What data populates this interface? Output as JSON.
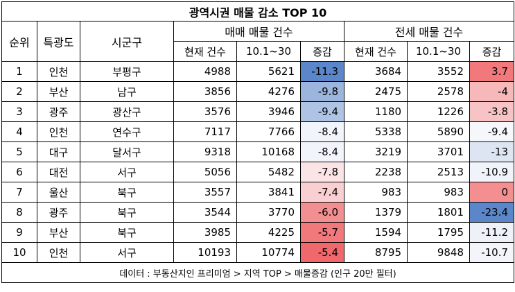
{
  "title": "광역시권 매물 감소 TOP 10",
  "headers": {
    "rank": "순위",
    "metro": "특광도",
    "district": "시군구",
    "sale_group": "매매 매물 건수",
    "jeonse_group": "전세 매물 건수",
    "current": "현재 건수",
    "period": "10.1~30",
    "change": "증감"
  },
  "rows": [
    {
      "rank": "1",
      "metro": "인천",
      "district": "부평구",
      "sale_cur": "4988",
      "sale_prev": "5621",
      "sale_chg": "-11.3",
      "sale_chg_color": "#5b86c9",
      "jeon_cur": "3684",
      "jeon_prev": "3552",
      "jeon_chg": "3.7",
      "jeon_chg_color": "#f2797b"
    },
    {
      "rank": "2",
      "metro": "부산",
      "district": "남구",
      "sale_cur": "3856",
      "sale_prev": "4276",
      "sale_chg": "-9.8",
      "sale_chg_color": "#9cb5dc",
      "jeon_cur": "2475",
      "jeon_prev": "2578",
      "jeon_chg": "-4",
      "jeon_chg_color": "#f7b8ba"
    },
    {
      "rank": "3",
      "metro": "광주",
      "district": "광산구",
      "sale_cur": "3576",
      "sale_prev": "3946",
      "sale_chg": "-9.4",
      "sale_chg_color": "#afc4e4",
      "jeon_cur": "1180",
      "jeon_prev": "1226",
      "jeon_chg": "-3.8",
      "jeon_chg_color": "#f7c3c5"
    },
    {
      "rank": "4",
      "metro": "인천",
      "district": "연수구",
      "sale_cur": "7117",
      "sale_prev": "7766",
      "sale_chg": "-8.4",
      "sale_chg_color": "#f1f4fa",
      "jeon_cur": "5338",
      "jeon_prev": "5890",
      "jeon_chg": "-9.4",
      "jeon_chg_color": "#f6f7fb"
    },
    {
      "rank": "5",
      "metro": "대구",
      "district": "달서구",
      "sale_cur": "9318",
      "sale_prev": "10168",
      "sale_chg": "-8.4",
      "sale_chg_color": "#f1f4fa",
      "jeon_cur": "3219",
      "jeon_prev": "3701",
      "jeon_chg": "-13",
      "jeon_chg_color": "#dde5f3"
    },
    {
      "rank": "6",
      "metro": "대전",
      "district": "서구",
      "sale_cur": "5056",
      "sale_prev": "5482",
      "sale_chg": "-7.8",
      "sale_chg_color": "#fbe4e5",
      "jeon_cur": "2238",
      "jeon_prev": "2513",
      "jeon_chg": "-10.9",
      "jeon_chg_color": "#f0f3f9"
    },
    {
      "rank": "7",
      "metro": "울산",
      "district": "북구",
      "sale_cur": "3557",
      "sale_prev": "3841",
      "sale_chg": "-7.4",
      "sale_chg_color": "#f9d0d2",
      "jeon_cur": "983",
      "jeon_prev": "983",
      "jeon_chg": "0",
      "jeon_chg_color": "#f48f91"
    },
    {
      "rank": "8",
      "metro": "광주",
      "district": "북구",
      "sale_cur": "3544",
      "sale_prev": "3770",
      "sale_chg": "-6.0",
      "sale_chg_color": "#f28f91",
      "jeon_cur": "1379",
      "jeon_prev": "1801",
      "jeon_chg": "-23.4",
      "jeon_chg_color": "#5b86c9"
    },
    {
      "rank": "9",
      "metro": "부산",
      "district": "북구",
      "sale_cur": "3985",
      "sale_prev": "4225",
      "sale_chg": "-5.7",
      "sale_chg_color": "#f1797c",
      "jeon_cur": "1594",
      "jeon_prev": "1795",
      "jeon_chg": "-11.2",
      "jeon_chg_color": "#eef1f8"
    },
    {
      "rank": "10",
      "metro": "인천",
      "district": "서구",
      "sale_cur": "10193",
      "sale_prev": "10774",
      "sale_chg": "-5.4",
      "sale_chg_color": "#f0686b",
      "jeon_cur": "8795",
      "jeon_prev": "9848",
      "jeon_chg": "-10.7",
      "jeon_chg_color": "#f3f5fa"
    }
  ],
  "footer": "데이터 : 부동산지인 프리미엄 > 지역 TOP > 매물증감 (인구 20만 필터)"
}
